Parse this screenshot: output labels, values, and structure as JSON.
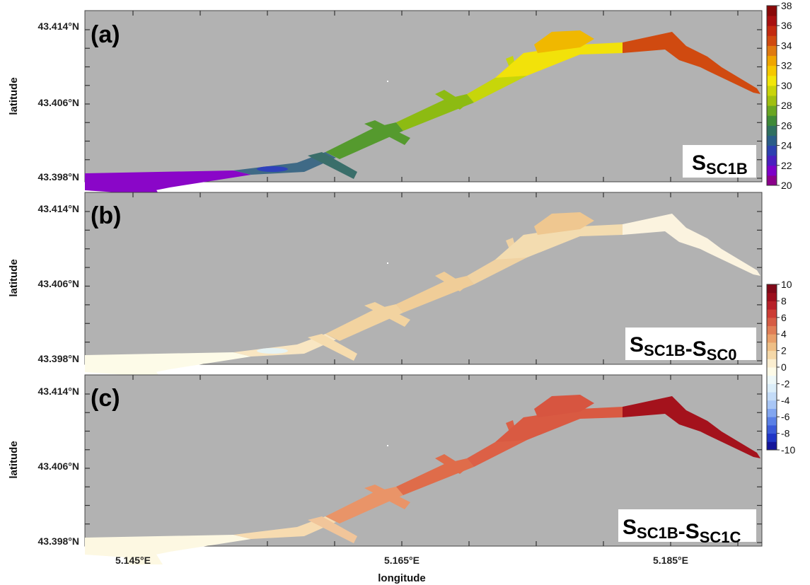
{
  "panels": [
    {
      "letter": "(a)",
      "label_parts": [
        {
          "main": "S",
          "sub": "SC1B"
        }
      ],
      "fills": {
        "west": "#8a06c8",
        "mid": "#3f6a86",
        "arm1": "#3a6e6a",
        "arm2": "#559a2e",
        "arm3": "#8dbb12",
        "arm4": "#c7d60a",
        "east": "#f2e20a",
        "lagoon": "#f0b800",
        "tail": "#d04a10",
        "blue": "#2b39c4"
      }
    },
    {
      "letter": "(b)",
      "label_parts": [
        {
          "main": "S",
          "sub": "SC1B"
        },
        {
          "main": "-S",
          "sub": "SC0"
        }
      ],
      "fills": {
        "west": "#fdfbe8",
        "mid": "#f9e6c2",
        "arm1": "#f6dcae",
        "arm2": "#f2d3a0",
        "arm3": "#f0cd98",
        "arm4": "#f0d2a2",
        "east": "#f3dcb0",
        "lagoon": "#efc790",
        "tail": "#fbf3df",
        "blue": "#e4f4fb"
      }
    },
    {
      "letter": "(c)",
      "label_parts": [
        {
          "main": "S",
          "sub": "SC1B"
        },
        {
          "main": "-S",
          "sub": "SC1C"
        }
      ],
      "fills": {
        "west": "#fdf8e2",
        "mid": "#f7dbb0",
        "arm1": "#f1c59a",
        "arm2": "#e99468",
        "arm3": "#df6c4a",
        "arm4": "#dc6046",
        "east": "#d95a42",
        "lagoon": "#d75540",
        "tail": "#a4121c",
        "blue": "#fdf8e2"
      }
    }
  ],
  "axes": {
    "x_ticks": [
      "5.145°E",
      "5.165°E",
      "5.185°E"
    ],
    "y_ticks": [
      "43.414°N",
      "43.406°N",
      "43.398°N"
    ],
    "x_label": "longitude",
    "y_label": "latitude",
    "x_range": [
      5.1395,
      5.1905
    ],
    "y_range": [
      43.3975,
      43.415
    ]
  },
  "colorbars": [
    {
      "range": [
        20,
        38
      ],
      "labels": [
        "38",
        "36",
        "34",
        "32",
        "30",
        "28",
        "26",
        "24",
        "22",
        "20"
      ],
      "colors": [
        "#8b008b",
        "#7d00c8",
        "#4a1fbf",
        "#2d40b0",
        "#2a5d88",
        "#2f7060",
        "#3f8a38",
        "#6aa622",
        "#a0bf10",
        "#c9d40a",
        "#f2e60a",
        "#f6c800",
        "#f0a600",
        "#e07a10",
        "#d04a10",
        "#c32a10",
        "#a81010",
        "#8a0808"
      ]
    },
    {
      "range": [
        -10,
        10
      ],
      "labels": [
        "10",
        "8",
        "6",
        "4",
        "2",
        "0",
        "-2",
        "-4",
        "-6",
        "-8",
        "-10"
      ],
      "colors": [
        "#14159a",
        "#1f35c6",
        "#3a5ad8",
        "#5a80e6",
        "#82a6f0",
        "#a8c6f6",
        "#c4dcf8",
        "#dceef9",
        "#eef8f8",
        "#fdfbe8",
        "#fbeed0",
        "#f5d8a8",
        "#efbf86",
        "#e9a06a",
        "#e07e56",
        "#d65c44",
        "#cc3c34",
        "#b82028",
        "#9c0e1c",
        "#800818"
      ]
    }
  ]
}
